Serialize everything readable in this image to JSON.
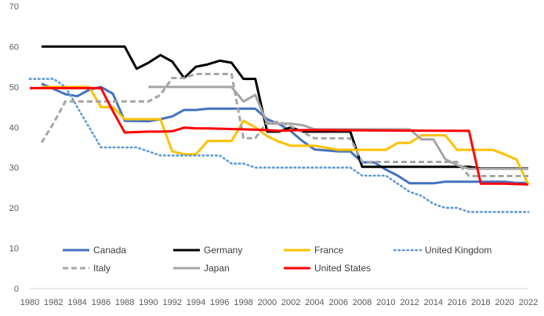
{
  "chart_data": {
    "type": "line",
    "title": "",
    "xlabel": "",
    "ylabel": "",
    "ylim": [
      0,
      70
    ],
    "yticks": [
      "0",
      "10",
      "20",
      "30",
      "40",
      "50",
      "60",
      "70"
    ],
    "xlim": [
      1980,
      2022
    ],
    "xticks": [
      "1980",
      "1982",
      "1984",
      "1986",
      "1988",
      "1990",
      "1992",
      "1994",
      "1996",
      "1998",
      "2000",
      "2002",
      "2004",
      "2006",
      "2008",
      "2010",
      "2012",
      "2014",
      "2016",
      "2018",
      "2020",
      "2022"
    ],
    "grid": false,
    "legend": "inside-bottom",
    "series": [
      {
        "name": "Canada",
        "color": "#4472c4",
        "style": "solid",
        "points": [
          [
            1981,
            50.8
          ],
          [
            1982,
            49.5
          ],
          [
            1983,
            48.2
          ],
          [
            1984,
            47.7
          ],
          [
            1985,
            49.3
          ],
          [
            1986,
            50.0
          ],
          [
            1987,
            48.3
          ],
          [
            1988,
            41.6
          ],
          [
            1990,
            41.5
          ],
          [
            1991,
            42.0
          ],
          [
            1992,
            42.7
          ],
          [
            1993,
            44.3
          ],
          [
            1994,
            44.3
          ],
          [
            1995,
            44.6
          ],
          [
            1997,
            44.6
          ],
          [
            1998,
            44.6
          ],
          [
            1999,
            44.6
          ],
          [
            2000,
            42.0
          ],
          [
            2001,
            40.8
          ],
          [
            2002,
            39.0
          ],
          [
            2003,
            36.5
          ],
          [
            2004,
            34.5
          ],
          [
            2006,
            34.0
          ],
          [
            2007,
            34.0
          ],
          [
            2008,
            31.3
          ],
          [
            2009,
            31.3
          ],
          [
            2010,
            29.5
          ],
          [
            2011,
            28.0
          ],
          [
            2012,
            26.1
          ],
          [
            2014,
            26.1
          ],
          [
            2015,
            26.5
          ],
          [
            2016,
            26.5
          ],
          [
            2017,
            26.5
          ],
          [
            2018,
            26.5
          ],
          [
            2019,
            26.5
          ],
          [
            2020,
            26.5
          ],
          [
            2021,
            26.2
          ],
          [
            2022,
            26.2
          ]
        ]
      },
      {
        "name": "Germany",
        "color": "#000000",
        "style": "solid",
        "points": [
          [
            1981,
            60
          ],
          [
            1988,
            60
          ],
          [
            1989,
            54.5
          ],
          [
            1990,
            56.0
          ],
          [
            1991,
            57.9
          ],
          [
            1992,
            56.3
          ],
          [
            1993,
            52.2
          ],
          [
            1994,
            55.0
          ],
          [
            1995,
            55.6
          ],
          [
            1996,
            56.5
          ],
          [
            1997,
            56.0
          ],
          [
            1998,
            52.0
          ],
          [
            1999,
            52.0
          ],
          [
            2000,
            38.9
          ],
          [
            2001,
            38.9
          ],
          [
            2002,
            40.0
          ],
          [
            2003,
            38.9
          ],
          [
            2007,
            38.9
          ],
          [
            2008,
            30.2
          ],
          [
            2017,
            30.2
          ],
          [
            2018,
            29.8
          ],
          [
            2022,
            29.8
          ]
        ]
      },
      {
        "name": "France",
        "color": "#ffc000",
        "style": "solid",
        "points": [
          [
            1981,
            50.0
          ],
          [
            1985,
            50.0
          ],
          [
            1986,
            45.0
          ],
          [
            1987,
            45.0
          ],
          [
            1988,
            42.0
          ],
          [
            1990,
            42.0
          ],
          [
            1991,
            42.0
          ],
          [
            1992,
            34.0
          ],
          [
            1993,
            33.3
          ],
          [
            1994,
            33.3
          ],
          [
            1995,
            36.6
          ],
          [
            1997,
            36.6
          ],
          [
            1998,
            41.6
          ],
          [
            1999,
            40.0
          ],
          [
            2000,
            37.8
          ],
          [
            2001,
            36.4
          ],
          [
            2002,
            35.4
          ],
          [
            2004,
            35.4
          ],
          [
            2005,
            34.9
          ],
          [
            2006,
            34.4
          ],
          [
            2007,
            34.4
          ],
          [
            2008,
            34.4
          ],
          [
            2009,
            34.4
          ],
          [
            2010,
            34.4
          ],
          [
            2011,
            36.1
          ],
          [
            2012,
            36.1
          ],
          [
            2013,
            38.0
          ],
          [
            2015,
            38.0
          ],
          [
            2016,
            34.4
          ],
          [
            2018,
            34.4
          ],
          [
            2019,
            34.4
          ],
          [
            2020,
            33.3
          ],
          [
            2021,
            32.0
          ],
          [
            2022,
            25.8
          ]
        ]
      },
      {
        "name": "United Kingdom",
        "color": "#5b9bd5",
        "style": "dotted",
        "points": [
          [
            1980,
            52.0
          ],
          [
            1982,
            52.0
          ],
          [
            1983,
            50.0
          ],
          [
            1984,
            45.0
          ],
          [
            1985,
            40.0
          ],
          [
            1986,
            35.0
          ],
          [
            1988,
            35.0
          ],
          [
            1989,
            35.0
          ],
          [
            1990,
            34.0
          ],
          [
            1991,
            33.0
          ],
          [
            1992,
            33.0
          ],
          [
            1996,
            33.0
          ],
          [
            1997,
            31.0
          ],
          [
            1998,
            31.0
          ],
          [
            1999,
            30.0
          ],
          [
            2000,
            30.0
          ],
          [
            2007,
            30.0
          ],
          [
            2008,
            28.0
          ],
          [
            2010,
            28.0
          ],
          [
            2011,
            26.0
          ],
          [
            2012,
            24.0
          ],
          [
            2013,
            23.0
          ],
          [
            2014,
            21.0
          ],
          [
            2015,
            20.0
          ],
          [
            2016,
            20.0
          ],
          [
            2017,
            19.0
          ],
          [
            2022,
            19.0
          ]
        ]
      },
      {
        "name": "Italy",
        "color": "#a5a5a5",
        "style": "dashed",
        "points": [
          [
            1981,
            36.2
          ],
          [
            1982,
            41.0
          ],
          [
            1983,
            46.4
          ],
          [
            1990,
            46.4
          ],
          [
            1991,
            48.0
          ],
          [
            1992,
            52.2
          ],
          [
            1993,
            52.2
          ],
          [
            1994,
            53.2
          ],
          [
            1996,
            53.2
          ],
          [
            1997,
            53.2
          ],
          [
            1998,
            37.3
          ],
          [
            1999,
            37.3
          ],
          [
            2000,
            41.3
          ],
          [
            2001,
            41.3
          ],
          [
            2002,
            40.25
          ],
          [
            2004,
            37.25
          ],
          [
            2007,
            37.25
          ],
          [
            2008,
            31.4
          ],
          [
            2016,
            31.4
          ],
          [
            2017,
            27.9
          ],
          [
            2022,
            27.9
          ]
        ]
      },
      {
        "name": "Japan",
        "color": "#a5a5a5",
        "style": "solid",
        "points": [
          [
            1990,
            50.0
          ],
          [
            1997,
            50.0
          ],
          [
            1998,
            46.4
          ],
          [
            1999,
            48.0
          ],
          [
            2000,
            40.9
          ],
          [
            2002,
            40.9
          ],
          [
            2003,
            40.5
          ],
          [
            2004,
            39.5
          ],
          [
            2007,
            39.5
          ],
          [
            2008,
            39.5
          ],
          [
            2012,
            39.5
          ],
          [
            2013,
            37.0
          ],
          [
            2014,
            37.0
          ],
          [
            2015,
            32.1
          ],
          [
            2016,
            30.6
          ],
          [
            2017,
            29.7
          ],
          [
            2022,
            29.7
          ]
        ]
      },
      {
        "name": "United States",
        "color": "#ff0000",
        "style": "solid",
        "points": [
          [
            1980,
            49.7
          ],
          [
            1985,
            49.7
          ],
          [
            1986,
            49.7
          ],
          [
            1987,
            44.0
          ],
          [
            1988,
            38.7
          ],
          [
            1990,
            38.9
          ],
          [
            1991,
            38.9
          ],
          [
            1992,
            39.0
          ],
          [
            1993,
            39.9
          ],
          [
            1994,
            39.7
          ],
          [
            1995,
            39.7
          ],
          [
            1999,
            39.4
          ],
          [
            2000,
            39.3
          ],
          [
            2001,
            39.1
          ],
          [
            2002,
            39.2
          ],
          [
            2003,
            39.3
          ],
          [
            2004,
            39.3
          ],
          [
            2017,
            39.1
          ],
          [
            2018,
            26.0
          ],
          [
            2020,
            26.0
          ],
          [
            2022,
            25.8
          ]
        ]
      }
    ]
  }
}
